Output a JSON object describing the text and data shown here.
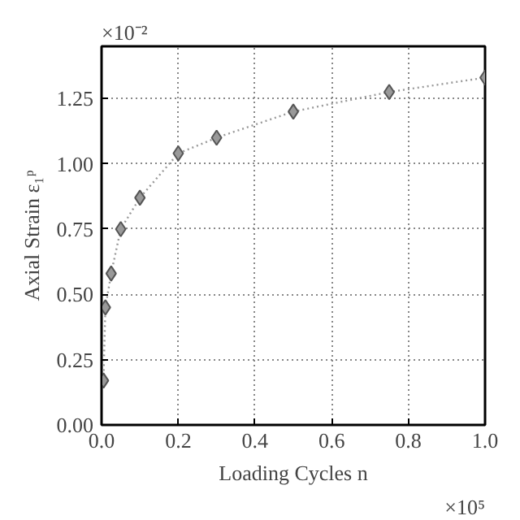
{
  "chart_data": {
    "type": "line",
    "xlabel": "Loading Cycles n",
    "ylabel": "Axial Strain ε₁ᵖ",
    "x": [
      0.005,
      0.01,
      0.025,
      0.05,
      0.1,
      0.2,
      0.3,
      0.5,
      0.75,
      1.0
    ],
    "series": [
      {
        "color": "#999999",
        "values": [
          0.17,
          0.45,
          0.58,
          0.75,
          0.87,
          1.04,
          1.1,
          1.2,
          1.275,
          1.33
        ]
      }
    ],
    "xlim": [
      0,
      1.0
    ],
    "ylim": [
      0,
      1.45
    ],
    "xticks": [
      {
        "value": 0,
        "label": "0.0"
      },
      {
        "value": 0.2,
        "label": "0.2"
      },
      {
        "value": 0.4,
        "label": "0.4"
      },
      {
        "value": 0.6,
        "label": "0.6"
      },
      {
        "value": 0.8,
        "label": "0.8"
      },
      {
        "value": 1.0,
        "label": "1.0"
      }
    ],
    "yticks": [
      {
        "value": 0,
        "label": "0.00"
      },
      {
        "value": 0.25,
        "label": "0.25"
      },
      {
        "value": 0.5,
        "label": "0.50"
      },
      {
        "value": 0.75,
        "label": "0.75"
      },
      {
        "value": 1.0,
        "label": "1.00"
      },
      {
        "value": 1.25,
        "label": "1.25"
      }
    ],
    "annotations": [
      "×10⁻²",
      "×10⁵"
    ],
    "grid": true,
    "marker": "diamond",
    "line_style": "dotted"
  }
}
